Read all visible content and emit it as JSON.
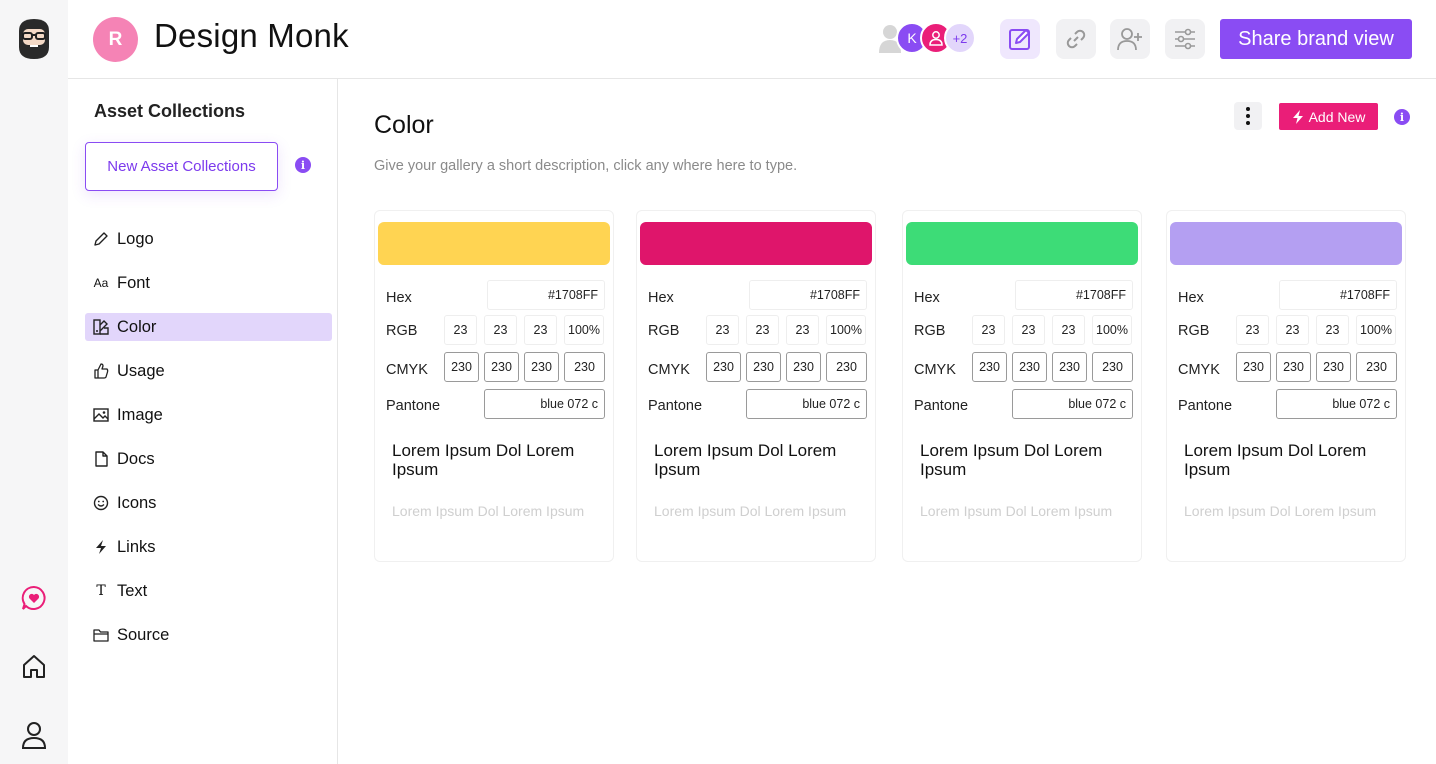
{
  "app": {
    "title": "Design Monk",
    "avatar_letter": "R"
  },
  "header": {
    "collaborators": [
      {
        "initial": "",
        "color": "#d6d6d6"
      },
      {
        "initial": "K",
        "color": "#8a4cf3"
      },
      {
        "initial": "",
        "color": "#ea1e78"
      },
      {
        "initial": "+2",
        "color": "#e2d6fb"
      }
    ],
    "share_label": "Share brand view"
  },
  "sidebar": {
    "title": "Asset Collections",
    "new_collection_label": "New Asset Collections",
    "info_glyph": "i",
    "items": [
      {
        "label": "Logo",
        "icon": "pencil-icon"
      },
      {
        "label": "Font",
        "icon": "font-icon",
        "glyph": "Aa"
      },
      {
        "label": "Color",
        "icon": "color-icon",
        "active": true
      },
      {
        "label": "Usage",
        "icon": "thumb-icon"
      },
      {
        "label": "Image",
        "icon": "image-icon"
      },
      {
        "label": "Docs",
        "icon": "doc-icon"
      },
      {
        "label": "Icons",
        "icon": "smile-icon"
      },
      {
        "label": "Links",
        "icon": "bolt-icon"
      },
      {
        "label": "Text",
        "icon": "text-icon",
        "glyph": "T"
      },
      {
        "label": "Source",
        "icon": "folder-icon"
      }
    ]
  },
  "main": {
    "title": "Color",
    "description": "Give your gallery a short description, click any where here to type.",
    "add_new_label": "Add New",
    "info_glyph": "i",
    "labels": {
      "hex": "Hex",
      "rgb": "RGB",
      "cmyk": "CMYK",
      "pantone": "Pantone"
    },
    "cards": [
      {
        "color": "#ffd452",
        "hex": "#1708FF",
        "rgb": [
          "23",
          "23",
          "23",
          "100%"
        ],
        "cmyk": [
          "230",
          "230",
          "230",
          "230"
        ],
        "pantone": "blue 072 c",
        "heading": "Lorem Ipsum Dol Lorem Ipsum",
        "sub": "Lorem Ipsum Dol Lorem Ipsum"
      },
      {
        "color": "#df156b",
        "hex": "#1708FF",
        "rgb": [
          "23",
          "23",
          "23",
          "100%"
        ],
        "cmyk": [
          "230",
          "230",
          "230",
          "230"
        ],
        "pantone": "blue 072 c",
        "heading": "Lorem Ipsum Dol Lorem Ipsum",
        "sub": "Lorem Ipsum Dol Lorem Ipsum"
      },
      {
        "color": "#3ddc77",
        "hex": "#1708FF",
        "rgb": [
          "23",
          "23",
          "23",
          "100%"
        ],
        "cmyk": [
          "230",
          "230",
          "230",
          "230"
        ],
        "pantone": "blue 072 c",
        "heading": "Lorem Ipsum Dol Lorem Ipsum",
        "sub": "Lorem Ipsum Dol Lorem Ipsum"
      },
      {
        "color": "#b49ff2",
        "hex": "#1708FF",
        "rgb": [
          "23",
          "23",
          "23",
          "100%"
        ],
        "cmyk": [
          "230",
          "230",
          "230",
          "230"
        ],
        "pantone": "blue 072 c",
        "heading": "Lorem Ipsum Dol Lorem Ipsum",
        "sub": "Lorem Ipsum Dol Lorem Ipsum"
      }
    ]
  },
  "colors": {
    "accent": "#8a4cf3",
    "pink": "#ea1e78",
    "active_bg": "#e2d6fb"
  }
}
